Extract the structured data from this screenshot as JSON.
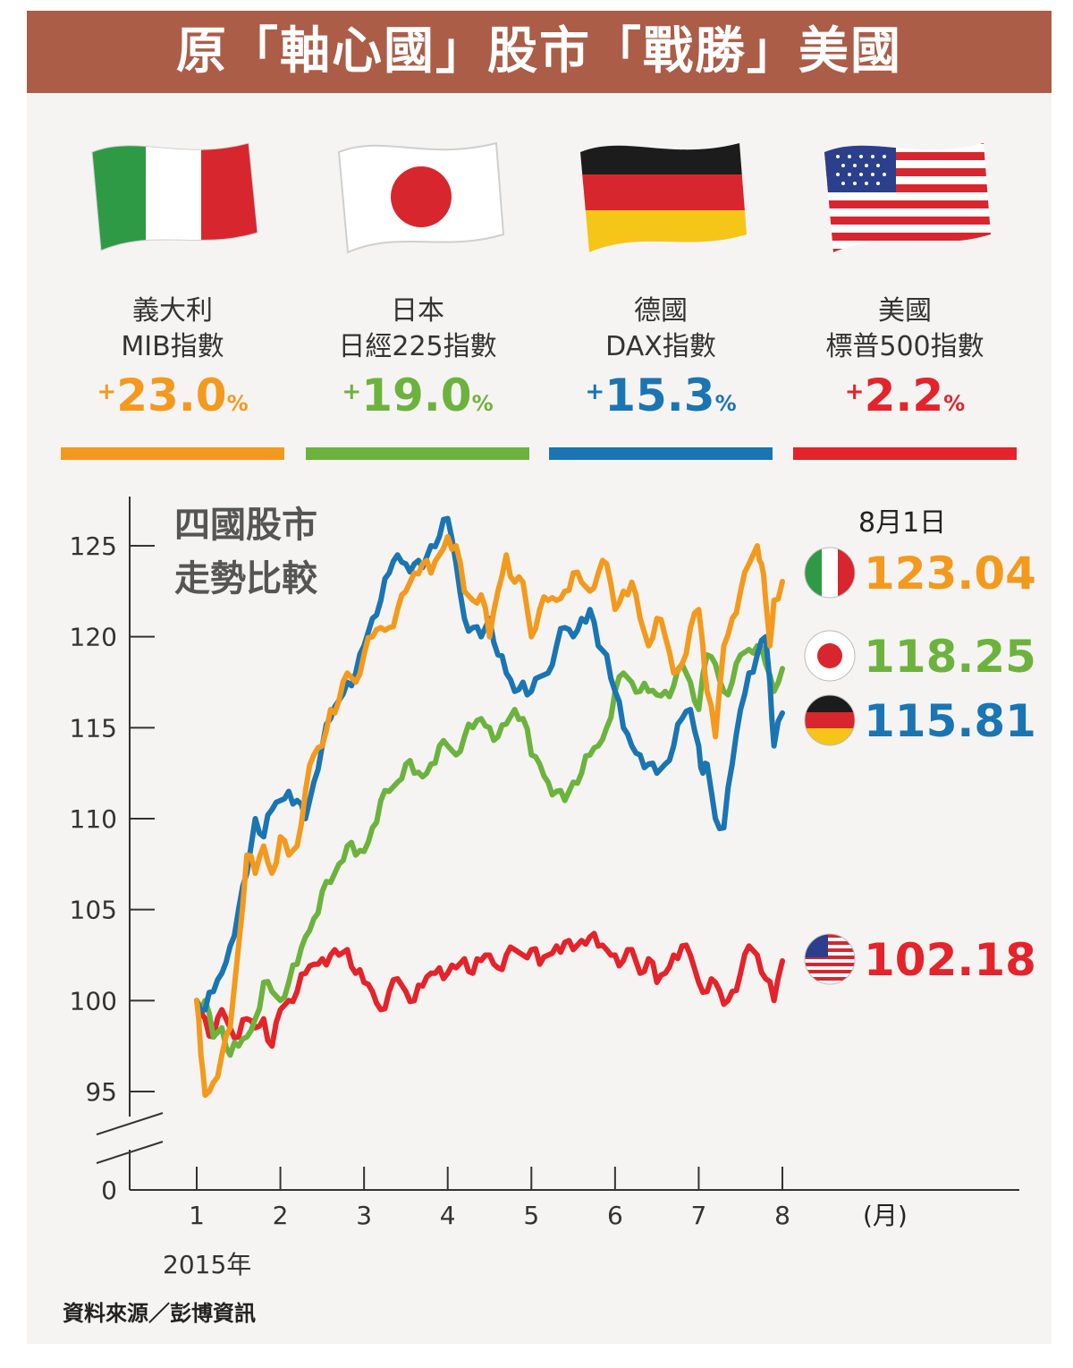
{
  "header": {
    "title": "原「軸心國」股市「戰勝」美國"
  },
  "countries": [
    {
      "name": "義大利",
      "index": "MIB指數",
      "sign": "+",
      "value": "23.0",
      "unit": "%",
      "color": "#f39a1e",
      "flag": "italy-flag-icon"
    },
    {
      "name": "日本",
      "index": "日經225指數",
      "sign": "+",
      "value": "19.0",
      "unit": "%",
      "color": "#6cb33e",
      "flag": "japan-flag-icon"
    },
    {
      "name": "德國",
      "index": "DAX指數",
      "sign": "+",
      "value": "15.3",
      "unit": "%",
      "color": "#1a75b3",
      "flag": "germany-flag-icon"
    },
    {
      "name": "美國",
      "index": "標普500指數",
      "sign": "+",
      "value": "2.2",
      "unit": "%",
      "color": "#e4232b",
      "flag": "usa-flag-icon"
    }
  ],
  "chart_data": {
    "type": "line",
    "title": "四國股市\n走勢比較",
    "title_lines": [
      "四國股市",
      "走勢比較"
    ],
    "end_label": "8月1日",
    "xlabel": "(月)",
    "x_ticks": [
      "1",
      "2",
      "3",
      "4",
      "5",
      "6",
      "7",
      "8"
    ],
    "year_label": "2015年",
    "y_ticks": [
      0,
      95,
      100,
      105,
      110,
      115,
      120,
      125
    ],
    "y_range": [
      95,
      127
    ],
    "axis_break": true,
    "grid": false,
    "x_range": [
      1,
      8
    ],
    "series": [
      {
        "name": "義大利",
        "color": "#f39a1e",
        "end_value": "123.04",
        "x": [
          1.0,
          1.05,
          1.1,
          1.2,
          1.3,
          1.4,
          1.5,
          1.6,
          1.7,
          1.8,
          1.9,
          2.0,
          2.1,
          2.2,
          2.3,
          2.4,
          2.5,
          2.6,
          2.7,
          2.8,
          2.9,
          3.0,
          3.1,
          3.2,
          3.3,
          3.4,
          3.5,
          3.6,
          3.7,
          3.8,
          3.9,
          4.0,
          4.1,
          4.2,
          4.3,
          4.4,
          4.5,
          4.6,
          4.7,
          4.8,
          4.9,
          5.0,
          5.1,
          5.2,
          5.3,
          5.4,
          5.5,
          5.6,
          5.7,
          5.8,
          5.9,
          6.0,
          6.1,
          6.2,
          6.3,
          6.4,
          6.5,
          6.6,
          6.7,
          6.8,
          6.9,
          7.0,
          7.05,
          7.1,
          7.2,
          7.3,
          7.4,
          7.5,
          7.6,
          7.7,
          7.75,
          7.8,
          7.85,
          7.9,
          8.0
        ],
        "values": [
          100,
          97,
          94.8,
          95.5,
          97,
          98.5,
          103,
          108,
          107,
          108.5,
          107,
          109,
          108,
          108.5,
          111.5,
          113.5,
          114,
          116,
          116.5,
          118,
          117.5,
          119,
          120,
          120.5,
          120.5,
          121.5,
          122.5,
          123.5,
          124,
          123.5,
          124.5,
          125.5,
          125,
          122.5,
          122,
          122.3,
          120,
          122.5,
          124.5,
          123,
          123,
          120,
          121.5,
          122,
          122,
          122.5,
          123.5,
          123,
          122.5,
          123.5,
          124,
          121.5,
          122.5,
          123,
          121,
          119.5,
          121,
          120,
          118,
          118.5,
          120.5,
          121.5,
          119.5,
          117,
          114.5,
          119.5,
          121,
          122.5,
          124,
          125,
          124,
          122,
          119.5,
          122,
          123.04
        ]
      },
      {
        "name": "日本",
        "color": "#6cb33e",
        "end_value": "118.25",
        "x": [
          1.0,
          1.1,
          1.2,
          1.3,
          1.4,
          1.5,
          1.6,
          1.7,
          1.8,
          1.9,
          2.0,
          2.1,
          2.2,
          2.3,
          2.4,
          2.5,
          2.6,
          2.7,
          2.8,
          2.9,
          3.0,
          3.1,
          3.2,
          3.3,
          3.4,
          3.5,
          3.6,
          3.7,
          3.8,
          3.9,
          4.0,
          4.1,
          4.2,
          4.3,
          4.4,
          4.5,
          4.6,
          4.7,
          4.8,
          4.9,
          5.0,
          5.1,
          5.2,
          5.3,
          5.4,
          5.5,
          5.6,
          5.7,
          5.8,
          5.9,
          6.0,
          6.1,
          6.2,
          6.3,
          6.4,
          6.5,
          6.6,
          6.7,
          6.8,
          6.9,
          7.0,
          7.1,
          7.2,
          7.3,
          7.4,
          7.5,
          7.6,
          7.7,
          7.8,
          7.9,
          8.0
        ],
        "values": [
          100,
          100,
          98,
          98.5,
          97,
          97.5,
          98,
          99,
          101,
          100.5,
          100,
          101,
          102,
          103.5,
          104.5,
          106,
          106.5,
          107.5,
          108.5,
          108,
          108.2,
          109.5,
          111,
          111.5,
          112,
          113,
          112.5,
          112.3,
          113,
          114,
          114,
          113.5,
          114.5,
          115,
          115.5,
          115,
          114.5,
          115.2,
          116,
          115.5,
          113.5,
          113,
          112,
          111.5,
          111,
          112,
          112.5,
          113.5,
          114,
          115,
          117,
          118,
          117.5,
          117,
          117,
          116.8,
          117,
          117.3,
          118.5,
          117.5,
          116,
          119,
          118.5,
          117,
          117.5,
          119,
          119.3,
          119.5,
          118.5,
          117,
          118.25
        ]
      },
      {
        "name": "德國",
        "color": "#1a75b3",
        "end_value": "115.81",
        "x": [
          1.0,
          1.1,
          1.2,
          1.3,
          1.4,
          1.5,
          1.6,
          1.7,
          1.8,
          1.9,
          2.0,
          2.1,
          2.2,
          2.3,
          2.4,
          2.5,
          2.6,
          2.7,
          2.8,
          2.9,
          3.0,
          3.1,
          3.2,
          3.3,
          3.4,
          3.5,
          3.6,
          3.7,
          3.8,
          3.9,
          4.0,
          4.1,
          4.2,
          4.3,
          4.4,
          4.5,
          4.6,
          4.7,
          4.8,
          4.9,
          5.0,
          5.1,
          5.2,
          5.3,
          5.4,
          5.5,
          5.6,
          5.7,
          5.8,
          5.9,
          6.0,
          6.1,
          6.2,
          6.3,
          6.4,
          6.5,
          6.6,
          6.7,
          6.8,
          6.9,
          7.0,
          7.05,
          7.1,
          7.2,
          7.3,
          7.4,
          7.5,
          7.6,
          7.7,
          7.8,
          7.85,
          7.9,
          8.0
        ],
        "values": [
          100,
          99.5,
          100.5,
          101.5,
          103,
          105,
          107,
          110,
          109,
          110.5,
          111,
          111.5,
          111,
          110,
          112,
          114,
          115.5,
          116.5,
          117.5,
          118,
          119.5,
          121,
          122,
          123.5,
          124.5,
          124,
          124,
          123.8,
          125,
          125.5,
          126.5,
          124,
          121,
          120.5,
          120,
          121,
          119,
          118,
          117,
          117.5,
          117,
          117.8,
          118,
          119.5,
          120.5,
          120,
          121,
          121.5,
          119.5,
          119,
          117,
          115,
          114,
          113.5,
          113,
          112.5,
          113,
          114,
          115.5,
          116,
          114,
          112.5,
          113,
          110,
          109.5,
          113,
          116,
          118,
          119,
          120,
          117.5,
          114,
          115.81
        ]
      },
      {
        "name": "美國",
        "color": "#e4232b",
        "end_value": "102.18",
        "x": [
          1.0,
          1.1,
          1.2,
          1.3,
          1.4,
          1.5,
          1.6,
          1.7,
          1.8,
          1.9,
          2.0,
          2.1,
          2.2,
          2.3,
          2.4,
          2.5,
          2.6,
          2.7,
          2.8,
          2.9,
          3.0,
          3.1,
          3.2,
          3.3,
          3.4,
          3.5,
          3.6,
          3.7,
          3.8,
          3.9,
          4.0,
          4.1,
          4.2,
          4.3,
          4.4,
          4.5,
          4.6,
          4.7,
          4.8,
          4.9,
          5.0,
          5.1,
          5.2,
          5.3,
          5.4,
          5.5,
          5.6,
          5.7,
          5.8,
          5.9,
          6.0,
          6.1,
          6.2,
          6.3,
          6.4,
          6.5,
          6.6,
          6.7,
          6.8,
          6.9,
          7.0,
          7.1,
          7.2,
          7.3,
          7.4,
          7.5,
          7.6,
          7.7,
          7.8,
          7.9,
          8.0
        ],
        "values": [
          100,
          99,
          98,
          99.5,
          98.5,
          98,
          99,
          98.5,
          99,
          97.5,
          99.5,
          100,
          100.5,
          101.5,
          102,
          102.3,
          102.5,
          102.5,
          102.8,
          101.5,
          101,
          100.5,
          99.5,
          100.5,
          101.2,
          100.5,
          100,
          100.8,
          101.5,
          101.8,
          101.5,
          101.8,
          102.3,
          101.5,
          102.2,
          102.5,
          101.8,
          102.5,
          102.8,
          102.5,
          102.8,
          102,
          102.5,
          103,
          103.2,
          102.8,
          103.3,
          103.5,
          103,
          102.8,
          102.5,
          102.2,
          102.8,
          101.5,
          102.3,
          101,
          101.5,
          102.5,
          103,
          102.5,
          101,
          100.5,
          101,
          99.8,
          100.5,
          101.5,
          103,
          102.5,
          101.2,
          100,
          102.18
        ]
      }
    ]
  },
  "source": "資料來源／彭博資訊"
}
